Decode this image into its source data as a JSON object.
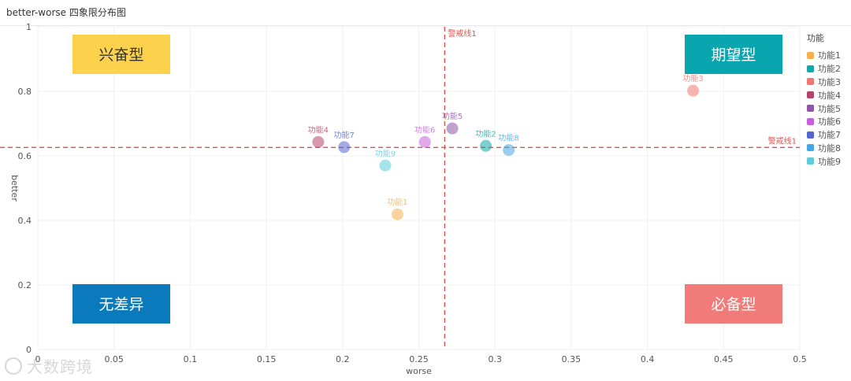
{
  "page": {
    "title": "better-worse 四象限分布图"
  },
  "chart_data": {
    "type": "scatter",
    "title": "better-worse 四象限分布图",
    "xlabel": "worse",
    "ylabel": "better",
    "xlim": [
      0,
      0.5
    ],
    "ylim": [
      0,
      1
    ],
    "xticks": [
      0,
      0.05,
      0.1,
      0.15,
      0.2,
      0.25,
      0.3,
      0.35,
      0.4,
      0.45,
      0.5
    ],
    "yticks": [
      0,
      0.2,
      0.4,
      0.6,
      0.8,
      1
    ],
    "grid": true,
    "legend_title": "功能",
    "legend_position": "right",
    "series": [
      {
        "name": "功能1",
        "color": "#f5b04b",
        "x": 0.236,
        "y": 0.419
      },
      {
        "name": "功能2",
        "color": "#13a8a8",
        "x": 0.294,
        "y": 0.631
      },
      {
        "name": "功能3",
        "color": "#ef7673",
        "x": 0.43,
        "y": 0.802
      },
      {
        "name": "功能4",
        "color": "#b5436a",
        "x": 0.184,
        "y": 0.643
      },
      {
        "name": "功能5",
        "color": "#8e55a8",
        "x": 0.272,
        "y": 0.685
      },
      {
        "name": "功能6",
        "color": "#c65fdb",
        "x": 0.254,
        "y": 0.643
      },
      {
        "name": "功能7",
        "color": "#5665d6",
        "x": 0.201,
        "y": 0.627
      },
      {
        "name": "功能8",
        "color": "#45a5e6",
        "x": 0.309,
        "y": 0.618
      },
      {
        "name": "功能9",
        "color": "#5dcddb",
        "x": 0.228,
        "y": 0.57
      }
    ],
    "reference_lines": [
      {
        "axis": "x",
        "value": 0.267,
        "label": "警戒线1",
        "color": "#e0534d"
      },
      {
        "axis": "y",
        "value": 0.626,
        "label": "警戒线1",
        "color": "#e0534d"
      }
    ],
    "quadrants": [
      {
        "label": "兴奋型",
        "position": "top-left",
        "bg": "#fcd24d",
        "text_color": "#333333"
      },
      {
        "label": "期望型",
        "position": "top-right",
        "bg": "#0aa6b0",
        "text_color": "#ffffff"
      },
      {
        "label": "无差异",
        "position": "bottom-left",
        "bg": "#0a7abc",
        "text_color": "#ffffff"
      },
      {
        "label": "必备型",
        "position": "bottom-right",
        "bg": "#f07b78",
        "text_color": "#ffffff"
      }
    ]
  },
  "watermark": {
    "text": "大数跨境"
  }
}
